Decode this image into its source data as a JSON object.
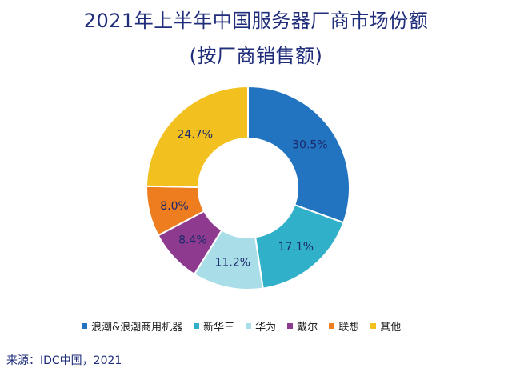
{
  "title": "2021年上半年中国服务器厂商市场份额",
  "subtitle": "(按厂商销售额)",
  "source": "来源：IDC中国，2021",
  "colors": {
    "inspur": "#2274c0",
    "xinhuasan": "#31b0c9",
    "huawei": "#a9dde8",
    "dell": "#8e3a8e",
    "lenovo": "#ee7d1f",
    "other": "#f2c01f",
    "title": "#1f2d7a"
  },
  "chart_data": {
    "type": "pie",
    "title": "2021年上半年中国服务器厂商市场份额",
    "subtitle": "(按厂商销售额)",
    "donut": true,
    "legend_position": "bottom",
    "series": [
      {
        "name": "浪潮&浪潮商用机器",
        "value": 30.5,
        "label": "30.5%",
        "color": "#2274c0"
      },
      {
        "name": "新华三",
        "value": 17.1,
        "label": "17.1%",
        "color": "#31b0c9"
      },
      {
        "name": "华为",
        "value": 11.2,
        "label": "11.2%",
        "color": "#a9dde8"
      },
      {
        "name": "戴尔",
        "value": 8.4,
        "label": "8.4%",
        "color": "#8e3a8e"
      },
      {
        "name": "联想",
        "value": 8.0,
        "label": "8.0%",
        "color": "#ee7d1f"
      },
      {
        "name": "其他",
        "value": 24.7,
        "label": "24.7%",
        "color": "#f2c01f"
      }
    ]
  }
}
